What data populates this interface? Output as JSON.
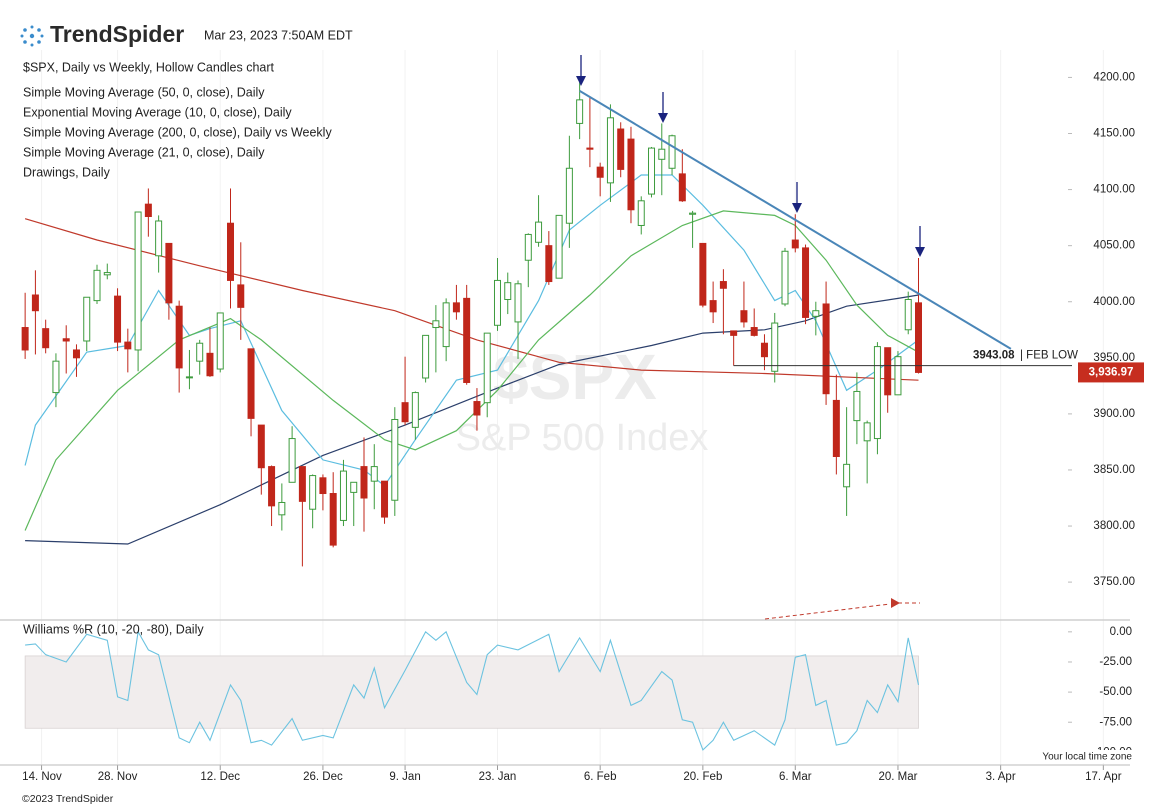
{
  "header": {
    "brand": "TrendSpider",
    "timestamp": "Mar 23, 2023 7:50AM EDT",
    "copyright": "©2023 TrendSpider",
    "timezone_note": "Your local time zone"
  },
  "chart_data": [
    {
      "type": "candlestick",
      "title": "$SPX, Daily vs Weekly, Hollow Candles chart",
      "watermark": "$SPX",
      "watermark_subtitle": "S&P 500 Index",
      "up_color": "#3d9b3d",
      "down_color": "#c0261a",
      "x": [
        0,
        1,
        2,
        3,
        4,
        5,
        6,
        7,
        8,
        9,
        10,
        11,
        12,
        13,
        14,
        15,
        16,
        17,
        18,
        19,
        20,
        21,
        22,
        23,
        24,
        25,
        26,
        27,
        28,
        29,
        30,
        31,
        32,
        33,
        34,
        35,
        36,
        37,
        38,
        39,
        40,
        41,
        42,
        43,
        44,
        45,
        46,
        47,
        48,
        49,
        50,
        51,
        52,
        53,
        54,
        55,
        56,
        57,
        58,
        59,
        60,
        61,
        62,
        63,
        64,
        65,
        66,
        67,
        68,
        69,
        70,
        71,
        72,
        73,
        74,
        75,
        76,
        77,
        78,
        79,
        80,
        81,
        82,
        83,
        84,
        85,
        86,
        87
      ],
      "open": [
        3977,
        4006,
        3976,
        3919,
        3967,
        3957,
        3965,
        4001,
        4024,
        4005,
        3964,
        3957,
        4087,
        4041,
        4052,
        3996,
        3933,
        3947,
        3954,
        3940,
        4070,
        4015,
        3958,
        3890,
        3853,
        3810,
        3839,
        3853,
        3815,
        3843,
        3829,
        3805,
        3830,
        3853,
        3840,
        3840,
        3823,
        3910,
        3888,
        3932,
        3977,
        3960,
        3999,
        4003,
        3911,
        3910,
        3979,
        4002,
        3982,
        4037,
        4053,
        4050,
        4021,
        4070,
        4159,
        4137,
        4120,
        4106,
        4154,
        4145,
        4068,
        4096,
        4127,
        4119,
        4114,
        4078,
        4052,
        4001,
        4018,
        3974,
        3992,
        3977,
        3963,
        3938,
        3998,
        4055,
        4048,
        3987,
        3998,
        3912,
        3835,
        3894,
        3876,
        3878,
        3959,
        3917,
        3975,
        3999
      ],
      "high": [
        4008,
        4028,
        3984,
        3954,
        3979,
        3962,
        4004,
        4033,
        4034,
        4012,
        3976,
        4080,
        4101,
        4077,
        4052,
        4001,
        3957,
        3966,
        3977,
        3990,
        4101,
        4053,
        3958,
        3890,
        3854,
        3838,
        3889,
        3853,
        3846,
        3846,
        3848,
        3859,
        3839,
        3879,
        3873,
        3840,
        3906,
        3951,
        3920,
        3970,
        3997,
        4003,
        4015,
        4015,
        3923,
        3972,
        4039,
        4026,
        4019,
        4061,
        4095,
        4063,
        4077,
        4148,
        4196,
        4183,
        4124,
        4176,
        4160,
        4156,
        4094,
        4138,
        4159,
        4149,
        4136,
        4081,
        4052,
        4018,
        4029,
        3974,
        4018,
        3994,
        3971,
        3990,
        4048,
        4078,
        4051,
        4000,
        4018,
        3935,
        3906,
        3937,
        3894,
        3964,
        3959,
        3956,
        4009,
        4039
      ],
      "low": [
        3949,
        3953,
        3954,
        3906,
        3936,
        3933,
        3956,
        3998,
        4020,
        3956,
        3937,
        3938,
        4058,
        4026,
        3984,
        3919,
        3922,
        3935,
        3933,
        3937,
        3994,
        3966,
        3880,
        3828,
        3800,
        3796,
        3839,
        3764,
        3798,
        3814,
        3781,
        3800,
        3800,
        3795,
        3815,
        3802,
        3809,
        3890,
        3877,
        3928,
        3937,
        3947,
        3984,
        3926,
        3885,
        3897,
        3974,
        3989,
        3949,
        4013,
        4049,
        4015,
        4021,
        4048,
        4145,
        4120,
        4094,
        4089,
        4111,
        4070,
        4060,
        4093,
        4095,
        4113,
        4089,
        4048,
        3995,
        3981,
        3971,
        3943,
        3977,
        3969,
        3939,
        3928,
        3996,
        4044,
        3980,
        3970,
        3908,
        3846,
        3809,
        3873,
        3838,
        3864,
        3901,
        3917,
        3971,
        3936
      ],
      "close": [
        3957,
        3992,
        3959,
        3947,
        3965,
        3950,
        4004,
        4028,
        4026,
        3964,
        3958,
        4080,
        4076,
        4072,
        3999,
        3941,
        3933,
        3963,
        3934,
        3990,
        4019,
        3995,
        3896,
        3852,
        3818,
        3821,
        3878,
        3822,
        3845,
        3829,
        3783,
        3849,
        3839,
        3825,
        3853,
        3808,
        3895,
        3893,
        3919,
        3970,
        3983,
        3999,
        3991,
        3928,
        3899,
        3972,
        4019,
        4017,
        4016,
        4060,
        4071,
        4018,
        4077,
        4119,
        4180,
        4136,
        4111,
        4164,
        4118,
        4082,
        4090,
        4137,
        4136,
        4148,
        4090,
        4079,
        3997,
        3991,
        4012,
        3970,
        3982,
        3970,
        3951,
        3981,
        4045,
        4048,
        3986,
        3992,
        3918,
        3862,
        3855,
        3920,
        3892,
        3960,
        3917,
        3951,
        4002,
        3936.97
      ],
      "series": [
        {
          "name": "Simple Moving Average (50, 0, close), Daily",
          "color": "#2b3f6b",
          "x": [
            0,
            10,
            19,
            29,
            37,
            46,
            52,
            61,
            66,
            72,
            76,
            80,
            85,
            87
          ],
          "values": [
            3787,
            3784,
            3819,
            3863,
            3890,
            3923,
            3944,
            3961,
            3972,
            3975,
            3983,
            3996,
            4003,
            4006
          ]
        },
        {
          "name": "Exponential Moving Average (10, 0, close), Daily",
          "color": "#5bbde0",
          "x": [
            0,
            1,
            6,
            10,
            13,
            16,
            18,
            21,
            25,
            29,
            33,
            35,
            38,
            42,
            46,
            50,
            53,
            56,
            60,
            63,
            66,
            70,
            73,
            75,
            77,
            80,
            83,
            87
          ],
          "values": [
            3854,
            3890,
            3955,
            3961,
            4010,
            3970,
            3976,
            3983,
            3903,
            3859,
            3850,
            3836,
            3877,
            3930,
            3939,
            4001,
            4064,
            4086,
            4113,
            4113,
            4086,
            4046,
            4001,
            4010,
            3983,
            3921,
            3939,
            3966
          ]
        },
        {
          "name": "Simple Moving Average (200, 0, close), Daily vs Weekly",
          "color": "#c0392b",
          "x": [
            0,
            7,
            17,
            27,
            36,
            44,
            52,
            60,
            72,
            87
          ],
          "values": [
            4074,
            4055,
            4032,
            4010,
            3992,
            3966,
            3946,
            3939,
            3936,
            3930
          ]
        },
        {
          "name": "Simple Moving Average (21, 0, close), Daily",
          "color": "#5cb85c",
          "x": [
            0,
            3,
            9,
            15,
            20,
            23,
            30,
            35,
            38,
            42,
            46,
            50,
            55,
            59,
            64,
            68,
            73,
            75,
            78,
            81,
            84,
            87
          ],
          "values": [
            3796,
            3859,
            3921,
            3966,
            3985,
            3966,
            3912,
            3877,
            3868,
            3885,
            3921,
            3966,
            4006,
            4041,
            4068,
            4081,
            4077,
            4068,
            4037,
            3997,
            3970,
            3955
          ]
        }
      ],
      "drawings_label": "Drawings, Daily",
      "trendline": {
        "color": "#4a86b8",
        "x": [
          54,
          96
        ],
        "values": [
          4188,
          3958
        ]
      },
      "feb_low": {
        "x": 69,
        "value": 3943.08,
        "text": "| FEB LOW"
      },
      "last_price": {
        "value": 3936.97,
        "label": "3,936.97"
      },
      "grid": true,
      "xlim": [
        -0.5,
        107.5
      ],
      "ylim": [
        3718,
        4220
      ],
      "xticks": [
        {
          "value": 1.6,
          "label": "14. Nov"
        },
        {
          "value": 9,
          "label": "28. Nov"
        },
        {
          "value": 19,
          "label": "12. Dec"
        },
        {
          "value": 29,
          "label": "26. Dec"
        },
        {
          "value": 37,
          "label": "9. Jan"
        },
        {
          "value": 46,
          "label": "23. Jan"
        },
        {
          "value": 56,
          "label": "6. Feb"
        },
        {
          "value": 66,
          "label": "20. Feb"
        },
        {
          "value": 75,
          "label": "6. Mar"
        },
        {
          "value": 85,
          "label": "20. Mar"
        },
        {
          "value": 95,
          "label": "3. Apr"
        },
        {
          "value": 105,
          "label": "17. Apr"
        }
      ],
      "yticks": [
        {
          "value": 3750,
          "label": "3750.00"
        },
        {
          "value": 3800,
          "label": "3800.00"
        },
        {
          "value": 3850,
          "label": "3850.00"
        },
        {
          "value": 3900,
          "label": "3900.00"
        },
        {
          "value": 3950,
          "label": "3950.00"
        },
        {
          "value": 4000,
          "label": "4000.00"
        },
        {
          "value": 4050,
          "label": "4050.00"
        },
        {
          "value": 4100,
          "label": "4100.00"
        },
        {
          "value": 4150,
          "label": "4150.00"
        },
        {
          "value": 4200,
          "label": "4200.00"
        }
      ]
    },
    {
      "type": "line",
      "series": [
        {
          "name": "Williams %R (10, -20, -80), Daily",
          "color": "#6cc3e0",
          "x": [
            0,
            1,
            2,
            4,
            6,
            8,
            9,
            10,
            11,
            12,
            13,
            15,
            16,
            17,
            18,
            20,
            21,
            22,
            23,
            24,
            26,
            27,
            29,
            30,
            32,
            33,
            34,
            35,
            37,
            39,
            40,
            41,
            43,
            44,
            45,
            46,
            48,
            51,
            52,
            54,
            56,
            57,
            59,
            60,
            62,
            63,
            64,
            65,
            66,
            67,
            68,
            69,
            71,
            73,
            74,
            75,
            76,
            77,
            78,
            79,
            80,
            81,
            82,
            83,
            84,
            85,
            86,
            87
          ],
          "values": [
            -11,
            -10,
            -19,
            -25,
            -2,
            -7,
            -54,
            -57,
            0,
            -15,
            -19,
            -88,
            -92,
            -75,
            -90,
            -44,
            -57,
            -92,
            -90,
            -94,
            -72,
            -90,
            -86,
            -88,
            -44,
            -55,
            -30,
            -63,
            -32,
            0,
            -7,
            0,
            -42,
            -52,
            -19,
            -11,
            -15,
            -2,
            -33,
            -5,
            -33,
            -7,
            -61,
            -57,
            -33,
            -40,
            -73,
            -75,
            -98,
            -90,
            -75,
            -90,
            -82,
            -94,
            -73,
            -21,
            -19,
            -61,
            -57,
            -94,
            -92,
            -82,
            -57,
            -67,
            -44,
            -58,
            -5,
            -44
          ]
        }
      ],
      "zones": {
        "upper": -20,
        "lower": -80
      },
      "xlim": [
        -0.5,
        107.5
      ],
      "ylim": [
        -108,
        9
      ],
      "yticks": [
        {
          "value": 0,
          "label": "0.00"
        },
        {
          "value": -25,
          "label": "-25.00"
        },
        {
          "value": -50,
          "label": "-50.00"
        },
        {
          "value": -75,
          "label": "-75.00"
        },
        {
          "value": -100,
          "label": "-100.00"
        }
      ]
    }
  ]
}
